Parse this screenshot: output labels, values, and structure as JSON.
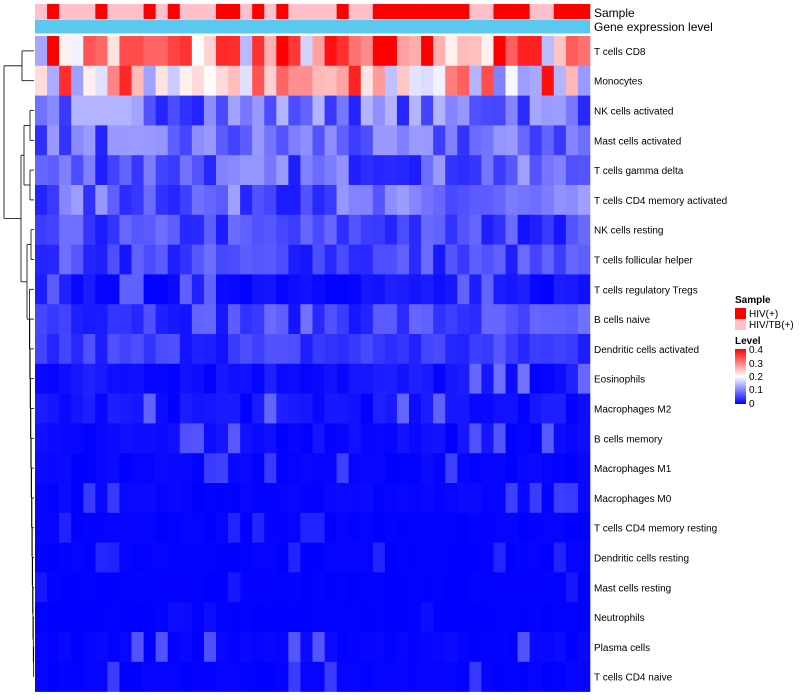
{
  "chart_data": {
    "type": "heatmap",
    "title": "",
    "annotation_tracks": [
      {
        "name": "Sample",
        "label": "Sample"
      },
      {
        "name": "Gene expression level",
        "label": "Gene expression level"
      }
    ],
    "rows": [
      "T cells CD8",
      "Monocytes",
      "NK cells activated",
      "Mast cells activated",
      "T cells gamma delta",
      "T cells CD4 memory activated",
      "NK cells resting",
      "T cells follicular helper",
      "T cells regulatory  Tregs",
      "B cells naive",
      "Dendritic cells activated",
      "Eosinophils",
      "Macrophages M2",
      "B cells memory",
      "Macrophages M1",
      "Macrophages M0",
      "T cells CD4 memory resting",
      "Dendritic cells resting",
      "Mast cells resting",
      "Neutrophils",
      "Plasma cells",
      "T cells CD4 naive"
    ],
    "n_samples": 46,
    "sample_groups": [
      "HIV/TB(+)",
      "HIV(+)",
      "HIV/TB(+)",
      "HIV/TB(+)",
      "HIV/TB(+)",
      "HIV(+)",
      "HIV/TB(+)",
      "HIV/TB(+)",
      "HIV/TB(+)",
      "HIV(+)",
      "HIV/TB(+)",
      "HIV(+)",
      "HIV/TB(+)",
      "HIV/TB(+)",
      "HIV/TB(+)",
      "HIV(+)",
      "HIV(+)",
      "HIV/TB(+)",
      "HIV(+)",
      "HIV/TB(+)",
      "HIV(+)",
      "HIV/TB(+)",
      "HIV/TB(+)",
      "HIV/TB(+)",
      "HIV/TB(+)",
      "HIV(+)",
      "HIV/TB(+)",
      "HIV/TB(+)",
      "HIV(+)",
      "HIV(+)",
      "HIV(+)",
      "HIV(+)",
      "HIV(+)",
      "HIV(+)",
      "HIV(+)",
      "HIV(+)",
      "HIV/TB(+)",
      "HIV/TB(+)",
      "HIV(+)",
      "HIV(+)",
      "HIV(+)",
      "HIV/TB(+)",
      "HIV/TB(+)",
      "HIV(+)",
      "HIV(+)",
      "HIV(+)"
    ],
    "row_means": [
      0.27,
      0.22,
      0.09,
      0.08,
      0.07,
      0.07,
      0.05,
      0.05,
      0.03,
      0.05,
      0.04,
      0.03,
      0.03,
      0.02,
      0.01,
      0.01,
      0.005,
      0.005,
      0.003,
      0.002,
      0.01,
      0.005
    ],
    "row_max": [
      0.4,
      0.4,
      0.14,
      0.12,
      0.17,
      0.14,
      0.12,
      0.1,
      0.08,
      0.1,
      0.09,
      0.09,
      0.08,
      0.07,
      0.05,
      0.05,
      0.03,
      0.03,
      0.02,
      0.01,
      0.07,
      0.05
    ],
    "dendrogram": "row clustering (hierarchical), drawn on the left",
    "legend": {
      "sample": {
        "title": "Sample",
        "entries": [
          {
            "label": "HIV(+)",
            "color": "#ff0000"
          },
          {
            "label": "HIV/TB(+)",
            "color": "#ffc0cb"
          }
        ]
      },
      "level": {
        "title": "Level",
        "ticks": [
          "0.4",
          "0.3",
          "0.2",
          "0.1",
          "0"
        ],
        "range": [
          0,
          0.4
        ],
        "colors": {
          "low": "#0000ff",
          "mid": "#ffffff",
          "high": "#ff0000"
        }
      }
    },
    "placement": {
      "legend": "right"
    }
  },
  "colors": {
    "gene_expression_track": "#5bc8f0",
    "hiv": "#ff0000",
    "hiv_tb": "#ffc0cb"
  }
}
